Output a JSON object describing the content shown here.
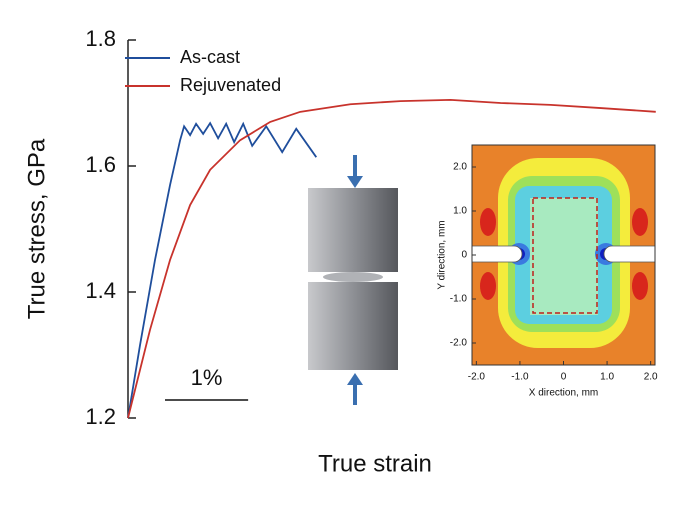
{
  "chart_data": [
    {
      "type": "line",
      "xlabel": "True strain",
      "ylabel": "True stress, GPa",
      "xlim": [
        0,
        6.4
      ],
      "ylim": [
        1.2,
        1.8
      ],
      "yticks": [
        1.2,
        1.4,
        1.6,
        1.8
      ],
      "legend": "upper left",
      "scale_bar": {
        "value": 1,
        "label": "1%"
      },
      "series": [
        {
          "name": "As-cast",
          "color": "#1f4e9c",
          "x": [
            0,
            0.145,
            0.325,
            0.506,
            0.627,
            0.675,
            0.747,
            0.819,
            0.904,
            0.988,
            1.084,
            1.181,
            1.277,
            1.386,
            1.494,
            1.663,
            1.855,
            2.024,
            2.265
          ],
          "values": [
            1.2,
            1.316,
            1.451,
            1.57,
            1.641,
            1.663,
            1.649,
            1.667,
            1.651,
            1.668,
            1.644,
            1.667,
            1.638,
            1.667,
            1.632,
            1.663,
            1.622,
            1.659,
            1.614
          ]
        },
        {
          "name": "Rejuvenated",
          "color": "#c8332c",
          "x": [
            0,
            0.265,
            0.506,
            0.747,
            0.988,
            1.349,
            1.711,
            2.072,
            2.675,
            3.277,
            3.88,
            4.482,
            5.084,
            5.687,
            6.349
          ],
          "values": [
            1.2,
            1.34,
            1.451,
            1.538,
            1.594,
            1.641,
            1.67,
            1.686,
            1.698,
            1.703,
            1.705,
            1.7,
            1.697,
            1.692,
            1.686
          ]
        }
      ]
    },
    {
      "type": "contour",
      "xlabel": "X direction, mm",
      "ylabel": "Y direction, mm",
      "xlim": [
        -2.1,
        2.1
      ],
      "ylim": [
        -2.5,
        2.5
      ],
      "xticks": [
        {
          "value": -2,
          "label": "-2.0"
        },
        {
          "value": -1,
          "label": "-1.0"
        },
        0,
        {
          "value": 1,
          "label": "1.0"
        },
        {
          "value": 2,
          "label": "2.0"
        }
      ],
      "yticks": [
        {
          "value": -2,
          "label": "-2.0"
        },
        {
          "value": -1,
          "label": "-1.0"
        },
        0,
        {
          "value": 1,
          "label": "1.0"
        },
        {
          "value": 2,
          "label": "2.0"
        }
      ]
    }
  ]
}
